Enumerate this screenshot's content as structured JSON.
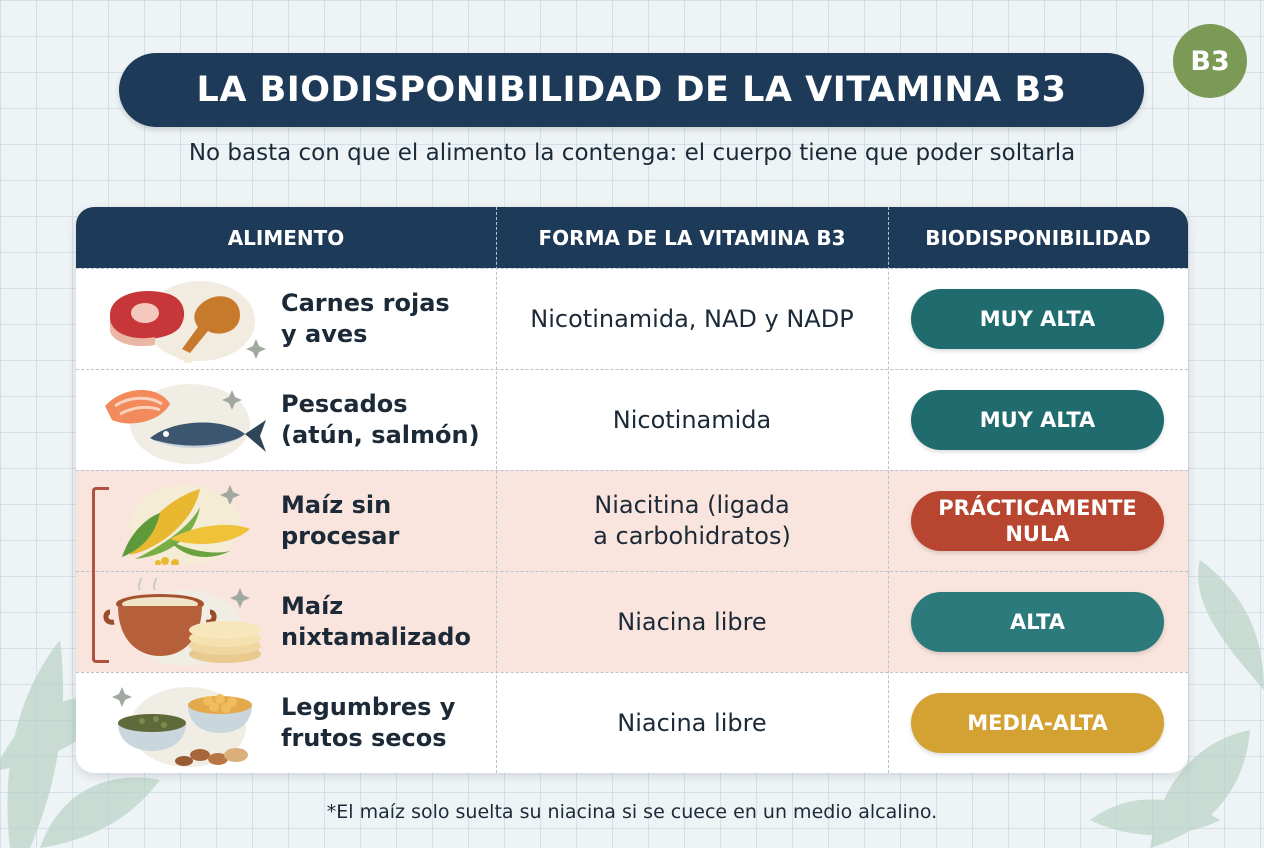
{
  "title": "LA BIODISPONIBILIDAD DE LA VITAMINA B3",
  "badge": "B3",
  "subtitle": "No basta con que el alimento la contenga: el cuerpo tiene que poder soltarla",
  "table": {
    "headers": [
      "ALIMENTO",
      "FORMA DE LA VITAMINA B3",
      "BIODISPONIBILIDAD"
    ],
    "rows": [
      {
        "food_line1": "Carnes rojas",
        "food_line2": "y aves",
        "form_line1": "Nicotinamida, NAD y NADP",
        "form_line2": "",
        "level_line1": "MUY ALTA",
        "level_line2": "",
        "level_color": "#1f6b6e",
        "icon": "meat-poultry-icon",
        "highlight": false
      },
      {
        "food_line1": "Pescados",
        "food_line2": "(atún, salmón)",
        "form_line1": "Nicotinamida",
        "form_line2": "",
        "level_line1": "MUY ALTA",
        "level_line2": "",
        "level_color": "#1f6b6e",
        "icon": "fish-icon",
        "highlight": false
      },
      {
        "food_line1": "Maíz sin",
        "food_line2": "procesar",
        "form_line1": "Niacitina (ligada",
        "form_line2": "a carbohidratos)",
        "level_line1": "PRÁCTICAMENTE",
        "level_line2": "NULA",
        "level_color": "#b8452f",
        "icon": "corn-icon",
        "highlight": true
      },
      {
        "food_line1": "Maíz",
        "food_line2": "nixtamalizado",
        "form_line1": "Niacina libre",
        "form_line2": "",
        "level_line1": "ALTA",
        "level_line2": "",
        "level_color": "#2c7a7b",
        "icon": "pot-tortillas-icon",
        "highlight": true
      },
      {
        "food_line1": "Legumbres y",
        "food_line2": "frutos secos",
        "form_line1": "Niacina libre",
        "form_line2": "",
        "level_line1": "MEDIA-ALTA",
        "level_line2": "",
        "level_color": "#d4a232",
        "icon": "legumes-nuts-icon",
        "highlight": false
      }
    ]
  },
  "footnote": "*El maíz solo suelta su niacina si se cuece en un medio alcalino.",
  "colors": {
    "navy": "#1d3a58",
    "badge_green": "#7b9a55",
    "highlight_bg": "#f9e5dd",
    "bracket": "#b0533e"
  }
}
